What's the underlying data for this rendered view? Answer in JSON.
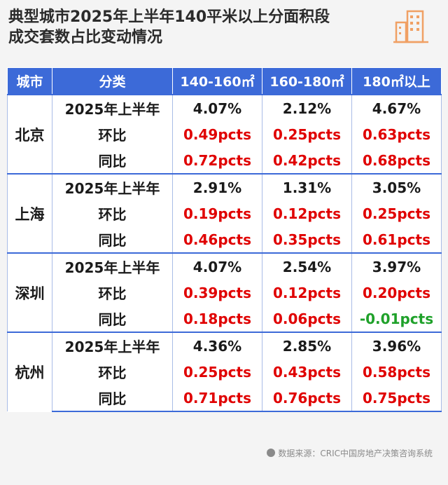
{
  "title": "典型城市2025年上半年140平米以上分面积段\n成交套数占比变动情况",
  "colors": {
    "header_bg": "#3c6ad8",
    "positive": "#e00000",
    "negative": "#1fa12a",
    "logo": "#f0a064"
  },
  "logo_icon": "building-icon",
  "source": "数据来源：CRIC中国房地产决策咨询系统",
  "chart_data": {
    "type": "table",
    "columns": [
      "城市",
      "分类",
      "140-160㎡",
      "160-180㎡",
      "180㎡以上"
    ],
    "groups": [
      {
        "city": "北京",
        "rows": [
          {
            "category": "2025年上半年",
            "values": [
              "4.07%",
              "2.12%",
              "4.67%"
            ],
            "tones": [
              "neutral",
              "neutral",
              "neutral"
            ]
          },
          {
            "category": "环比",
            "values": [
              "0.49pcts",
              "0.25pcts",
              "0.63pcts"
            ],
            "tones": [
              "positive",
              "positive",
              "positive"
            ]
          },
          {
            "category": "同比",
            "values": [
              "0.72pcts",
              "0.42pcts",
              "0.68pcts"
            ],
            "tones": [
              "positive",
              "positive",
              "positive"
            ]
          }
        ]
      },
      {
        "city": "上海",
        "rows": [
          {
            "category": "2025年上半年",
            "values": [
              "2.91%",
              "1.31%",
              "3.05%"
            ],
            "tones": [
              "neutral",
              "neutral",
              "neutral"
            ]
          },
          {
            "category": "环比",
            "values": [
              "0.19pcts",
              "0.12pcts",
              "0.25pcts"
            ],
            "tones": [
              "positive",
              "positive",
              "positive"
            ]
          },
          {
            "category": "同比",
            "values": [
              "0.46pcts",
              "0.35pcts",
              "0.61pcts"
            ],
            "tones": [
              "positive",
              "positive",
              "positive"
            ]
          }
        ]
      },
      {
        "city": "深圳",
        "rows": [
          {
            "category": "2025年上半年",
            "values": [
              "4.07%",
              "2.54%",
              "3.97%"
            ],
            "tones": [
              "neutral",
              "neutral",
              "neutral"
            ]
          },
          {
            "category": "环比",
            "values": [
              "0.39pcts",
              "0.12pcts",
              "0.20pcts"
            ],
            "tones": [
              "positive",
              "positive",
              "positive"
            ]
          },
          {
            "category": "同比",
            "values": [
              "0.18pcts",
              "0.06pcts",
              "-0.01pcts"
            ],
            "tones": [
              "positive",
              "positive",
              "negative"
            ]
          }
        ]
      },
      {
        "city": "杭州",
        "rows": [
          {
            "category": "2025年上半年",
            "values": [
              "4.36%",
              "2.85%",
              "3.96%"
            ],
            "tones": [
              "neutral",
              "neutral",
              "neutral"
            ]
          },
          {
            "category": "环比",
            "values": [
              "0.25pcts",
              "0.43pcts",
              "0.58pcts"
            ],
            "tones": [
              "positive",
              "positive",
              "positive"
            ]
          },
          {
            "category": "同比",
            "values": [
              "0.71pcts",
              "0.76pcts",
              "0.75pcts"
            ],
            "tones": [
              "positive",
              "positive",
              "positive"
            ]
          }
        ]
      }
    ]
  }
}
